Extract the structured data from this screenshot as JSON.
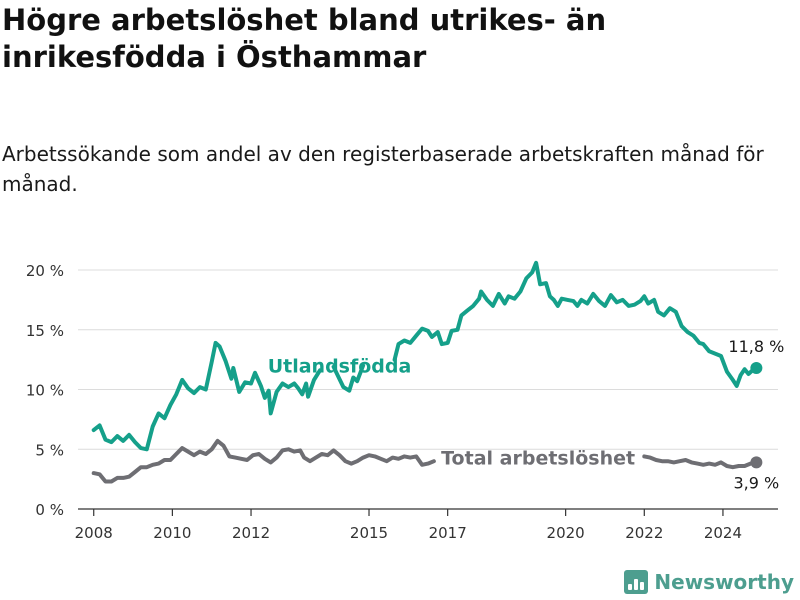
{
  "header": {
    "title": "Högre arbetslöshet bland utrikes- än inrikesfödda i Östhammar",
    "subtitle": "Arbetssökande som andel av den registerbaserade arbetskraften månad för månad."
  },
  "branding": {
    "name": "Newsworthy",
    "icon": "bar-chart-icon",
    "color": "#4d9e8f"
  },
  "chart_data": {
    "type": "line",
    "x_unit": "year (decimal)",
    "xlim": [
      2007.6,
      2025.4
    ],
    "ylim": [
      0,
      20
    ],
    "y_ticks": [
      {
        "value": 0,
        "label": "0 %"
      },
      {
        "value": 5,
        "label": "5 %"
      },
      {
        "value": 10,
        "label": "10 %"
      },
      {
        "value": 15,
        "label": "15 %"
      },
      {
        "value": 20,
        "label": "20 %"
      }
    ],
    "x_ticks": [
      {
        "value": 2008,
        "label": "2008"
      },
      {
        "value": 2010,
        "label": "2010"
      },
      {
        "value": 2012,
        "label": "2012"
      },
      {
        "value": 2015,
        "label": "2015"
      },
      {
        "value": 2017,
        "label": "2017"
      },
      {
        "value": 2020,
        "label": "2020"
      },
      {
        "value": 2022,
        "label": "2022"
      },
      {
        "value": 2024,
        "label": "2024"
      }
    ],
    "grid": true,
    "series": [
      {
        "name": "Utlandsfödda",
        "color": "#15a08a",
        "end_label": "11,8 %",
        "segments": [
          [
            [
              2008.0,
              6.6
            ],
            [
              2008.15,
              7.0
            ],
            [
              2008.3,
              5.8
            ],
            [
              2008.45,
              5.6
            ],
            [
              2008.6,
              6.1
            ],
            [
              2008.75,
              5.7
            ],
            [
              2008.9,
              6.2
            ],
            [
              2009.05,
              5.6
            ],
            [
              2009.2,
              5.1
            ],
            [
              2009.35,
              5.0
            ],
            [
              2009.5,
              6.9
            ],
            [
              2009.65,
              8.0
            ],
            [
              2009.8,
              7.6
            ],
            [
              2009.95,
              8.7
            ],
            [
              2010.1,
              9.6
            ],
            [
              2010.25,
              10.8
            ],
            [
              2010.4,
              10.1
            ],
            [
              2010.55,
              9.7
            ],
            [
              2010.7,
              10.2
            ],
            [
              2010.85,
              10.0
            ],
            [
              2011.0,
              12.3
            ],
            [
              2011.1,
              13.9
            ],
            [
              2011.2,
              13.6
            ],
            [
              2011.35,
              12.4
            ],
            [
              2011.5,
              10.9
            ],
            [
              2011.55,
              11.8
            ],
            [
              2011.7,
              9.8
            ],
            [
              2011.85,
              10.6
            ],
            [
              2012.0,
              10.5
            ],
            [
              2012.1,
              11.4
            ],
            [
              2012.25,
              10.3
            ],
            [
              2012.35,
              9.3
            ],
            [
              2012.45,
              9.9
            ],
            [
              2012.5,
              8.0
            ],
            [
              2012.65,
              9.8
            ],
            [
              2012.8,
              10.5
            ],
            [
              2012.95,
              10.2
            ],
            [
              2013.1,
              10.5
            ],
            [
              2013.2,
              10.1
            ],
            [
              2013.3,
              9.6
            ],
            [
              2013.4,
              10.5
            ],
            [
              2013.45,
              9.4
            ],
            [
              2013.6,
              10.8
            ],
            [
              2013.75,
              11.6
            ]
          ],
          [
            [
              2014.1,
              11.9
            ],
            [
              2014.2,
              11.2
            ],
            [
              2014.35,
              10.2
            ],
            [
              2014.5,
              9.9
            ],
            [
              2014.6,
              11.0
            ],
            [
              2014.7,
              10.7
            ],
            [
              2014.85,
              12.0
            ]
          ],
          [
            [
              2015.65,
              12.5
            ],
            [
              2015.75,
              13.8
            ],
            [
              2015.9,
              14.1
            ],
            [
              2016.05,
              13.9
            ],
            [
              2016.2,
              14.5
            ],
            [
              2016.35,
              15.1
            ],
            [
              2016.5,
              14.9
            ],
            [
              2016.6,
              14.4
            ],
            [
              2016.75,
              14.8
            ],
            [
              2016.85,
              13.8
            ],
            [
              2017.0,
              13.9
            ],
            [
              2017.1,
              14.9
            ],
            [
              2017.25,
              15.0
            ],
            [
              2017.35,
              16.2
            ],
            [
              2017.5,
              16.6
            ],
            [
              2017.65,
              17.0
            ],
            [
              2017.8,
              17.6
            ],
            [
              2017.85,
              18.2
            ],
            [
              2018.0,
              17.5
            ],
            [
              2018.15,
              17.0
            ],
            [
              2018.3,
              18.0
            ],
            [
              2018.45,
              17.2
            ],
            [
              2018.55,
              17.8
            ],
            [
              2018.7,
              17.6
            ],
            [
              2018.85,
              18.2
            ],
            [
              2019.0,
              19.3
            ],
            [
              2019.15,
              19.8
            ],
            [
              2019.25,
              20.6
            ],
            [
              2019.35,
              18.8
            ],
            [
              2019.5,
              18.9
            ],
            [
              2019.6,
              17.8
            ],
            [
              2019.7,
              17.5
            ],
            [
              2019.8,
              17.0
            ],
            [
              2019.9,
              17.6
            ],
            [
              2020.05,
              17.5
            ],
            [
              2020.2,
              17.4
            ],
            [
              2020.3,
              17.0
            ],
            [
              2020.4,
              17.5
            ],
            [
              2020.55,
              17.2
            ],
            [
              2020.7,
              18.0
            ],
            [
              2020.85,
              17.4
            ],
            [
              2021.0,
              17.0
            ],
            [
              2021.15,
              17.9
            ],
            [
              2021.3,
              17.3
            ],
            [
              2021.45,
              17.5
            ],
            [
              2021.6,
              17.0
            ],
            [
              2021.75,
              17.1
            ],
            [
              2021.9,
              17.4
            ],
            [
              2022.0,
              17.8
            ],
            [
              2022.1,
              17.2
            ],
            [
              2022.25,
              17.5
            ],
            [
              2022.35,
              16.5
            ],
            [
              2022.5,
              16.2
            ],
            [
              2022.65,
              16.8
            ],
            [
              2022.8,
              16.5
            ],
            [
              2022.95,
              15.3
            ],
            [
              2023.1,
              14.8
            ],
            [
              2023.25,
              14.5
            ],
            [
              2023.4,
              13.9
            ],
            [
              2023.5,
              13.8
            ],
            [
              2023.65,
              13.2
            ],
            [
              2023.8,
              13.0
            ],
            [
              2023.95,
              12.8
            ],
            [
              2024.1,
              11.5
            ],
            [
              2024.25,
              10.8
            ],
            [
              2024.35,
              10.3
            ],
            [
              2024.45,
              11.2
            ],
            [
              2024.55,
              11.7
            ],
            [
              2024.65,
              11.3
            ],
            [
              2024.75,
              11.6
            ],
            [
              2024.85,
              11.8
            ]
          ]
        ]
      },
      {
        "name": "Total arbetslöshet",
        "color": "#6e6e73",
        "end_label": "3,9 %",
        "segments": [
          [
            [
              2008.0,
              3.0
            ],
            [
              2008.15,
              2.9
            ],
            [
              2008.3,
              2.3
            ],
            [
              2008.45,
              2.3
            ],
            [
              2008.6,
              2.6
            ],
            [
              2008.75,
              2.6
            ],
            [
              2008.9,
              2.7
            ],
            [
              2009.05,
              3.1
            ],
            [
              2009.2,
              3.5
            ],
            [
              2009.35,
              3.5
            ],
            [
              2009.5,
              3.7
            ],
            [
              2009.65,
              3.8
            ],
            [
              2009.8,
              4.1
            ],
            [
              2009.95,
              4.1
            ],
            [
              2010.1,
              4.6
            ],
            [
              2010.25,
              5.1
            ],
            [
              2010.4,
              4.8
            ],
            [
              2010.55,
              4.5
            ],
            [
              2010.7,
              4.8
            ],
            [
              2010.85,
              4.6
            ],
            [
              2011.0,
              5.0
            ],
            [
              2011.15,
              5.7
            ],
            [
              2011.3,
              5.3
            ],
            [
              2011.45,
              4.4
            ],
            [
              2011.6,
              4.3
            ],
            [
              2011.75,
              4.2
            ],
            [
              2011.9,
              4.1
            ],
            [
              2012.05,
              4.5
            ],
            [
              2012.2,
              4.6
            ],
            [
              2012.35,
              4.2
            ],
            [
              2012.5,
              3.9
            ],
            [
              2012.65,
              4.3
            ],
            [
              2012.8,
              4.9
            ],
            [
              2012.95,
              5.0
            ],
            [
              2013.1,
              4.8
            ],
            [
              2013.25,
              4.9
            ],
            [
              2013.35,
              4.3
            ],
            [
              2013.5,
              4.0
            ],
            [
              2013.65,
              4.3
            ],
            [
              2013.8,
              4.6
            ],
            [
              2013.95,
              4.5
            ],
            [
              2014.1,
              4.9
            ],
            [
              2014.25,
              4.5
            ],
            [
              2014.4,
              4.0
            ],
            [
              2014.55,
              3.8
            ],
            [
              2014.7,
              4.0
            ],
            [
              2014.85,
              4.3
            ],
            [
              2015.0,
              4.5
            ],
            [
              2015.15,
              4.4
            ],
            [
              2015.3,
              4.2
            ],
            [
              2015.45,
              4.0
            ],
            [
              2015.6,
              4.3
            ],
            [
              2015.75,
              4.2
            ],
            [
              2015.9,
              4.4
            ],
            [
              2016.05,
              4.3
            ],
            [
              2016.2,
              4.4
            ],
            [
              2016.35,
              3.7
            ],
            [
              2016.5,
              3.8
            ],
            [
              2016.65,
              4.0
            ]
          ],
          [
            [
              2022.0,
              4.4
            ],
            [
              2022.15,
              4.3
            ],
            [
              2022.3,
              4.1
            ],
            [
              2022.45,
              4.0
            ],
            [
              2022.6,
              4.0
            ],
            [
              2022.75,
              3.9
            ],
            [
              2022.9,
              4.0
            ],
            [
              2023.05,
              4.1
            ],
            [
              2023.2,
              3.9
            ],
            [
              2023.35,
              3.8
            ],
            [
              2023.5,
              3.7
            ],
            [
              2023.65,
              3.8
            ],
            [
              2023.8,
              3.7
            ],
            [
              2023.95,
              3.9
            ],
            [
              2024.1,
              3.6
            ],
            [
              2024.25,
              3.5
            ],
            [
              2024.4,
              3.6
            ],
            [
              2024.55,
              3.6
            ],
            [
              2024.7,
              3.8
            ],
            [
              2024.85,
              3.9
            ]
          ]
        ]
      }
    ]
  }
}
